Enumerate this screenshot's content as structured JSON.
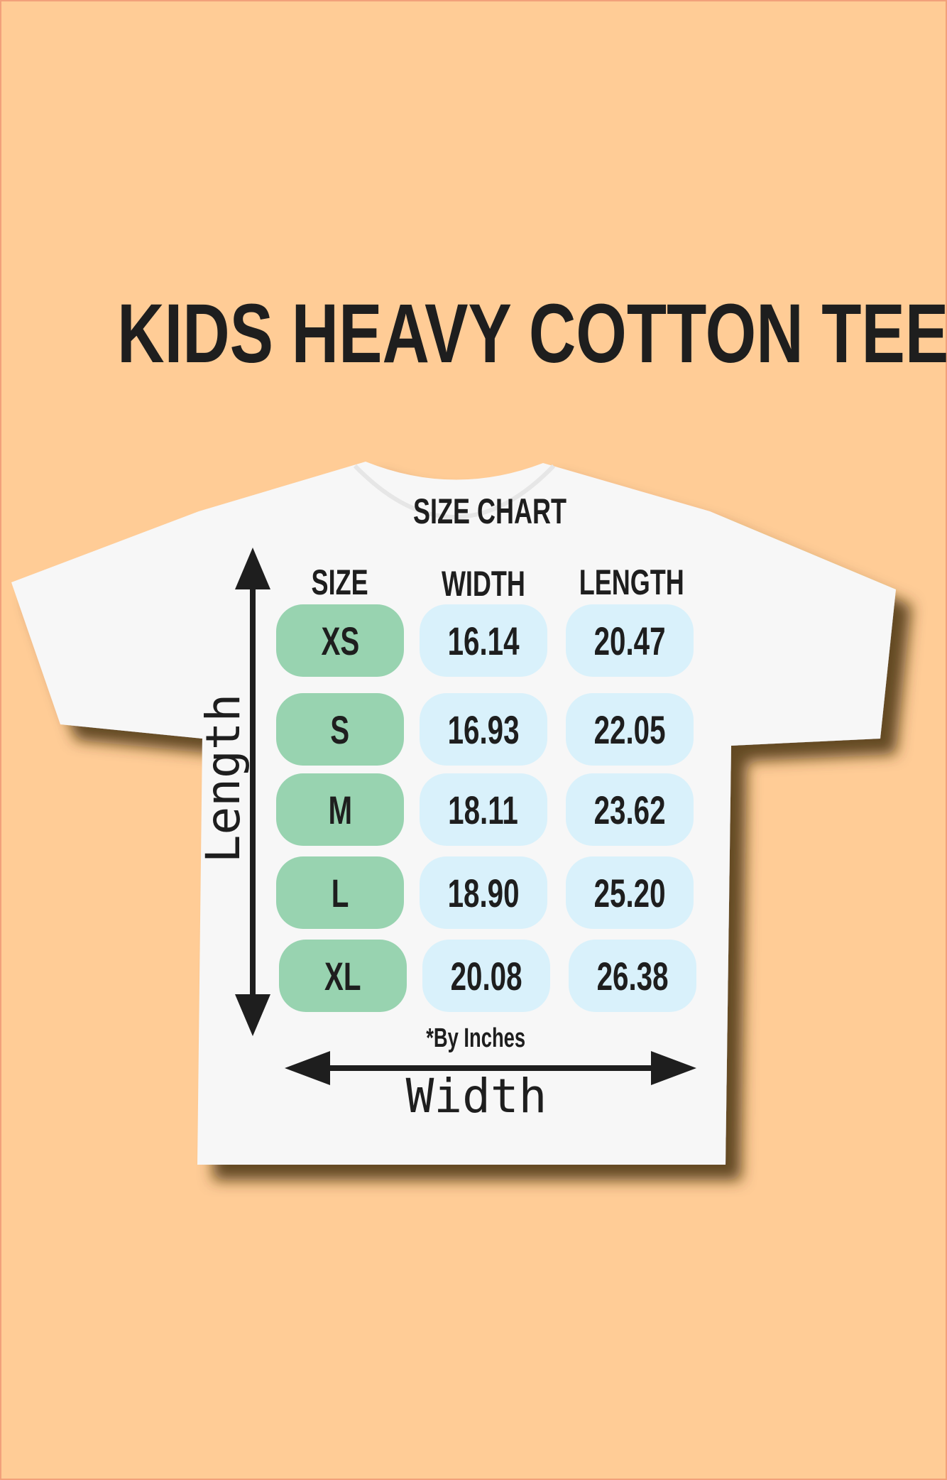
{
  "title": "KIDS HEAVY COTTON TEE",
  "size_chart": {
    "heading": "SIZE CHART",
    "columns": [
      "SIZE",
      "WIDTH",
      "LENGTH"
    ],
    "rows": [
      {
        "size": "XS",
        "width": "16.14",
        "length": "20.47"
      },
      {
        "size": "S",
        "width": "16.93",
        "length": "22.05"
      },
      {
        "size": "M",
        "width": "18.11",
        "length": "23.62"
      },
      {
        "size": "L",
        "width": "18.90",
        "length": "25.20"
      },
      {
        "size": "XL",
        "width": "20.08",
        "length": "26.38"
      }
    ],
    "note": "*By Inches"
  },
  "arrows": {
    "vertical_label": "Length",
    "horizontal_label": "Width"
  },
  "colors": {
    "background": "#ffcc96",
    "size_pill": "#98d3b0",
    "value_pill": "#d9f1fb",
    "text": "#1e1e1e"
  }
}
